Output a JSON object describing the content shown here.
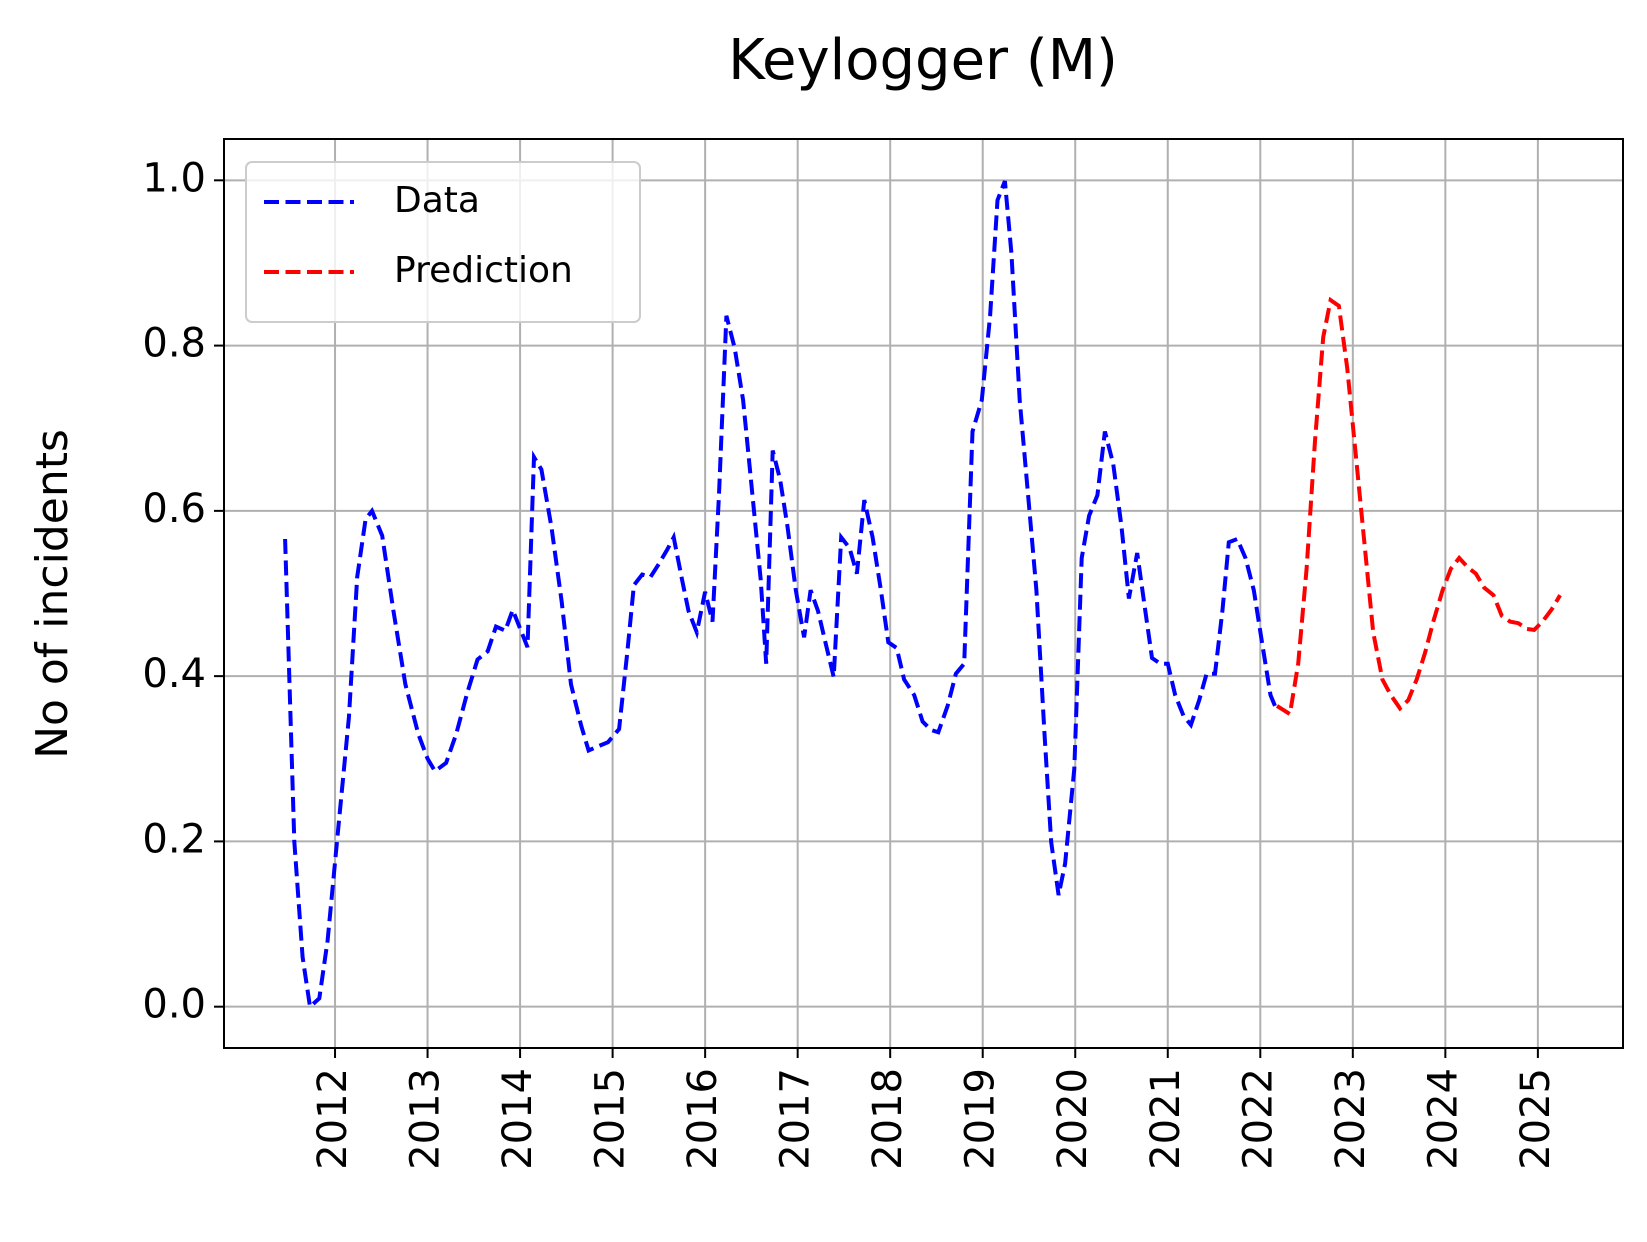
{
  "chart_data": {
    "type": "line",
    "title": "Keylogger (M)",
    "y_label": "No of incidents",
    "xlim": [
      2010.8,
      2025.92
    ],
    "xticks": [
      2012,
      2013,
      2014,
      2015,
      2016,
      2017,
      2018,
      2019,
      2020,
      2021,
      2022,
      2023,
      2024,
      2025
    ],
    "ylim": [
      -0.05,
      1.05
    ],
    "yticks": [
      {
        "value": 0,
        "label": "0.0"
      },
      0.2,
      0.4,
      0.6,
      0.8,
      {
        "value": 1,
        "label": "1.0"
      }
    ],
    "grid": true,
    "legend": "upper left",
    "series": [
      {
        "name": "Data",
        "color": "#0000ff",
        "x": [
          2011.46,
          2011.56,
          2011.65,
          2011.73,
          2011.83,
          2011.92,
          2012.03,
          2012.15,
          2012.24,
          2012.33,
          2012.4,
          2012.51,
          2012.63,
          2012.76,
          2012.9,
          2013.0,
          2013.08,
          2013.2,
          2013.31,
          2013.43,
          2013.54,
          2013.65,
          2013.74,
          2013.84,
          2013.92,
          2014.01,
          2014.08,
          2014.15,
          2014.23,
          2014.34,
          2014.45,
          2014.55,
          2014.66,
          2014.74,
          2014.84,
          2014.95,
          2015.07,
          2015.16,
          2015.23,
          2015.32,
          2015.41,
          2015.5,
          2015.59,
          2015.66,
          2015.75,
          2015.82,
          2015.91,
          2016.0,
          2016.08,
          2016.15,
          2016.23,
          2016.32,
          2016.41,
          2016.5,
          2016.6,
          2016.66,
          2016.73,
          2016.81,
          2016.89,
          2016.98,
          2017.07,
          2017.14,
          2017.22,
          2017.3,
          2017.39,
          2017.47,
          2017.56,
          2017.64,
          2017.72,
          2017.81,
          2017.9,
          2017.98,
          2018.07,
          2018.15,
          2018.26,
          2018.35,
          2018.44,
          2018.52,
          2018.62,
          2018.71,
          2018.8,
          2018.89,
          2018.99,
          2019.08,
          2019.16,
          2019.24,
          2019.31,
          2019.4,
          2019.49,
          2019.58,
          2019.67,
          2019.74,
          2019.82,
          2019.89,
          2019.99,
          2020.07,
          2020.15,
          2020.24,
          2020.32,
          2020.41,
          2020.5,
          2020.58,
          2020.67,
          2020.75,
          2020.83,
          2020.92,
          2021.0,
          2021.08,
          2021.17,
          2021.25,
          2021.34,
          2021.42,
          2021.51,
          2021.59,
          2021.66,
          2021.75,
          2021.84,
          2021.93,
          2022.01,
          2022.11,
          2022.18
        ],
        "values": [
          0.566,
          0.2,
          0.06,
          0.0,
          0.01,
          0.08,
          0.21,
          0.35,
          0.52,
          0.59,
          0.6,
          0.57,
          0.48,
          0.39,
          0.33,
          0.3,
          0.285,
          0.295,
          0.33,
          0.38,
          0.42,
          0.43,
          0.46,
          0.455,
          0.48,
          0.455,
          0.435,
          0.665,
          0.65,
          0.58,
          0.49,
          0.39,
          0.34,
          0.31,
          0.315,
          0.32,
          0.336,
          0.43,
          0.51,
          0.523,
          0.52,
          0.536,
          0.553,
          0.568,
          0.517,
          0.479,
          0.453,
          0.502,
          0.466,
          0.62,
          0.836,
          0.797,
          0.734,
          0.632,
          0.517,
          0.415,
          0.673,
          0.638,
          0.581,
          0.504,
          0.447,
          0.504,
          0.479,
          0.441,
          0.399,
          0.568,
          0.555,
          0.524,
          0.613,
          0.568,
          0.504,
          0.441,
          0.434,
          0.396,
          0.377,
          0.345,
          0.335,
          0.332,
          0.364,
          0.403,
          0.415,
          0.696,
          0.734,
          0.836,
          0.976,
          0.999,
          0.912,
          0.734,
          0.619,
          0.504,
          0.326,
          0.199,
          0.135,
          0.173,
          0.288,
          0.543,
          0.594,
          0.619,
          0.696,
          0.657,
          0.581,
          0.494,
          0.549,
          0.485,
          0.422,
          0.415,
          0.415,
          0.377,
          0.352,
          0.341,
          0.371,
          0.403,
          0.403,
          0.479,
          0.562,
          0.566,
          0.543,
          0.504,
          0.447,
          0.377,
          0.358
        ]
      },
      {
        "name": "Prediction",
        "color": "#ff0000",
        "x": [
          2022.18,
          2022.32,
          2022.41,
          2022.5,
          2022.59,
          2022.68,
          2022.76,
          2022.85,
          2022.94,
          2023.03,
          2023.13,
          2023.22,
          2023.32,
          2023.41,
          2023.51,
          2023.6,
          2023.69,
          2023.78,
          2023.87,
          2023.97,
          2024.06,
          2024.15,
          2024.24,
          2024.33,
          2024.42,
          2024.52,
          2024.61,
          2024.7,
          2024.79,
          2024.88,
          2024.96,
          2025.05,
          2025.15,
          2025.24
        ],
        "values": [
          0.364,
          0.354,
          0.415,
          0.53,
          0.683,
          0.81,
          0.855,
          0.848,
          0.772,
          0.67,
          0.555,
          0.453,
          0.396,
          0.377,
          0.361,
          0.371,
          0.396,
          0.428,
          0.466,
          0.504,
          0.53,
          0.543,
          0.532,
          0.524,
          0.507,
          0.498,
          0.473,
          0.466,
          0.464,
          0.457,
          0.456,
          0.466,
          0.481,
          0.498
        ]
      }
    ]
  }
}
